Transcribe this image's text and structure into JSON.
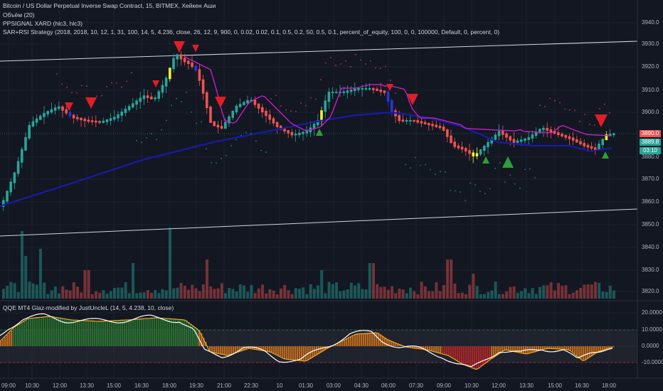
{
  "legend": {
    "main_title": "Bitcoin / US Dollar Perpetual Inverse Swap Contract, 15, BITMEX, Хейкен Аши",
    "volume": "Объём (20)",
    "ppsignal": "PPSIGNAL XARD (hlc3, hlc3)",
    "strategy": "SAR+RSI Strategy (2018, 2018, 10, 12, 1, 31, 100, 14, 5, 4.236, close, 26, 12, 9, 900, 0, 0.02, 0.02, 0.1, 0.5, 0.2, 50, 0.5, 0.1, percent_of_equity, 100, 0, 0, 100000, Default, 0, percent, 0)",
    "qqe": "QQE MT4 Glaz-modified by JustUncleL (14, 5, 4.238, 10, close)"
  },
  "price_axis": [
    "3940.0",
    "3930.0",
    "3920.0",
    "3910.0",
    "3900.0",
    "3880.0",
    "3870.0",
    "3860.0",
    "3850.0",
    "3840.0",
    "3830.0",
    "3820.0"
  ],
  "price_tags": {
    "last": "3890.0",
    "mid": "3889.8",
    "countdown": "03:10"
  },
  "qqe_axis": [
    "20.0000",
    "10.0000",
    "0.0000",
    "-10.0000"
  ],
  "time_axis": [
    "09:00",
    "10:30",
    "12:00",
    "13:30",
    "15:00",
    "16:30",
    "18:00",
    "19:30",
    "21:00",
    "22:30",
    "10",
    "01:30",
    "03:00",
    "04:30",
    "06:00",
    "07:30",
    "09:00",
    "10:30",
    "12:00",
    "13:30",
    "15:00",
    "16:30",
    "18:00"
  ],
  "colors": {
    "background": "#131722",
    "bull": "#26a69a",
    "bear": "#ef5350",
    "highlight": "#f5f032",
    "slow_ma": "#1a1aa8",
    "fast_ma": "#c41fc4",
    "sell_signal": "#e01e25",
    "buy_signal": "#2e9e3a",
    "qqe_pos": "#2e7d32",
    "qqe_neg": "#c62828",
    "qqe_mid": "#e07b1a"
  }
}
